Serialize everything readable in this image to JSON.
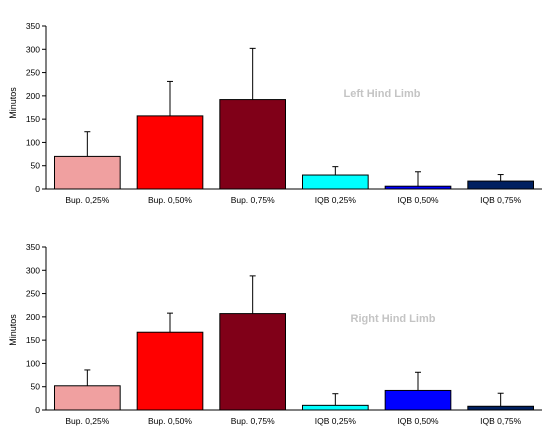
{
  "chart_data": [
    {
      "type": "bar",
      "title": "",
      "annotation": "Left Hind Limb",
      "xlabel": "",
      "ylabel": "Minutos",
      "ylim": [
        0,
        350
      ],
      "yticks": [
        0,
        50,
        100,
        150,
        200,
        250,
        300,
        350
      ],
      "grid": false,
      "legend": "none",
      "categories": [
        "Bup. 0,25%",
        "Bup. 0,50%",
        "Bup. 0,75%",
        "IQB 0,25%",
        "IQB 0,50%",
        "IQB 0,75%"
      ],
      "values": [
        70,
        157,
        192,
        30,
        6,
        17
      ],
      "error_upper": [
        123,
        231,
        302,
        48,
        37,
        31
      ],
      "colors": [
        "#f0a0a0",
        "#ff0000",
        "#800018",
        "#00ffff",
        "#0000ff",
        "#002060"
      ]
    },
    {
      "type": "bar",
      "title": "",
      "annotation": "Right Hind Limb",
      "xlabel": "",
      "ylabel": "Minutos",
      "ylim": [
        0,
        350
      ],
      "yticks": [
        0,
        50,
        100,
        150,
        200,
        250,
        300,
        350
      ],
      "grid": false,
      "legend": "none",
      "categories": [
        "Bup. 0,25%",
        "Bup. 0,50%",
        "Bup. 0,75%",
        "IQB 0,25%",
        "IQB 0,50%",
        "IQB 0,75%"
      ],
      "values": [
        52,
        167,
        207,
        10,
        42,
        8
      ],
      "error_upper": [
        86,
        208,
        288,
        35,
        81,
        36
      ],
      "colors": [
        "#f0a0a0",
        "#ff0000",
        "#800018",
        "#00ffff",
        "#0000ff",
        "#002060"
      ]
    }
  ]
}
